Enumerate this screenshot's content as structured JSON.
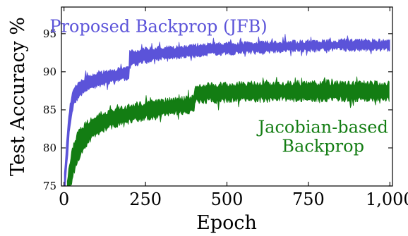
{
  "chart_data": {
    "type": "line",
    "xlabel": "Epoch",
    "ylabel": "Test Accuracy %",
    "xlim": [
      -8,
      1008
    ],
    "ylim": [
      75,
      98.5
    ],
    "x_ticks": [
      0,
      250,
      500,
      750,
      1000
    ],
    "x_tick_labels": [
      "0",
      "250",
      "500",
      "750",
      "1,000"
    ],
    "y_ticks": [
      75,
      80,
      85,
      90,
      95
    ],
    "y_tick_labels": [
      "75",
      "80",
      "85",
      "90",
      "95"
    ],
    "grid": false,
    "legend": "none; series labeled by in-plot annotations",
    "series": [
      {
        "name": "Proposed Backprop (JFB)",
        "color": "#5b53d9",
        "band": {
          "x": [
            1,
            5,
            10,
            15,
            20,
            25,
            30,
            40,
            50,
            60,
            75,
            90,
            100,
            125,
            150,
            175,
            199,
            200,
            201,
            210,
            250,
            300,
            350,
            400,
            450,
            500,
            550,
            600,
            650,
            700,
            750,
            800,
            850,
            900,
            950,
            1000
          ],
          "upper": [
            76.5,
            79,
            82,
            84.5,
            86,
            87,
            87.8,
            88.3,
            88.6,
            88.9,
            89.2,
            89.5,
            89.6,
            89.9,
            90.1,
            90.3,
            90.4,
            91.5,
            92.5,
            92.6,
            92.9,
            93.1,
            93.2,
            93.4,
            93.5,
            93.6,
            93.7,
            93.75,
            93.8,
            93.85,
            93.9,
            93.9,
            94.0,
            94.0,
            94.0,
            94.0
          ],
          "lower": [
            74,
            75.5,
            78.5,
            81.5,
            83.5,
            84.8,
            85.8,
            86.5,
            86.9,
            87.3,
            87.7,
            88.0,
            88.2,
            88.5,
            88.8,
            89.0,
            89.1,
            89.6,
            90.5,
            91.0,
            91.4,
            91.8,
            92.0,
            92.2,
            92.4,
            92.5,
            92.6,
            92.7,
            92.8,
            92.85,
            92.9,
            92.95,
            93.0,
            93.0,
            93.0,
            93.0
          ]
        }
      },
      {
        "name": "Jacobian-based Backprop",
        "color": "#137d13",
        "band": {
          "x": [
            10,
            15,
            20,
            25,
            30,
            40,
            50,
            75,
            100,
            150,
            200,
            250,
            300,
            350,
            399,
            400,
            401,
            450,
            500,
            550,
            600,
            650,
            700,
            750,
            800,
            850,
            900,
            950,
            1000
          ],
          "upper": [
            75.5,
            77,
            78.5,
            79.5,
            80.5,
            81.5,
            82.3,
            83.4,
            84.1,
            84.9,
            85.4,
            85.8,
            86.1,
            86.3,
            86.5,
            87.3,
            88.0,
            88.2,
            88.2,
            88.3,
            88.3,
            88.3,
            88.4,
            88.4,
            88.4,
            88.4,
            88.4,
            88.4,
            88.4
          ],
          "lower": [
            73,
            74,
            75,
            76,
            76.8,
            78,
            79.2,
            81.0,
            82.0,
            83.0,
            83.6,
            84.0,
            84.4,
            84.7,
            84.9,
            85.6,
            86.2,
            86.3,
            86.4,
            86.4,
            86.4,
            86.5,
            86.5,
            86.5,
            86.5,
            86.5,
            86.5,
            86.5,
            86.5
          ]
        }
      }
    ],
    "annotations": [
      {
        "lines": [
          "Proposed Backprop (JFB)"
        ],
        "color": "#5b53d9",
        "x": 290,
        "y": 95.2
      },
      {
        "lines": [
          "Jacobian-based",
          "Backprop"
        ],
        "color": "#137d13",
        "x": 795,
        "y": 82.0
      }
    ]
  }
}
